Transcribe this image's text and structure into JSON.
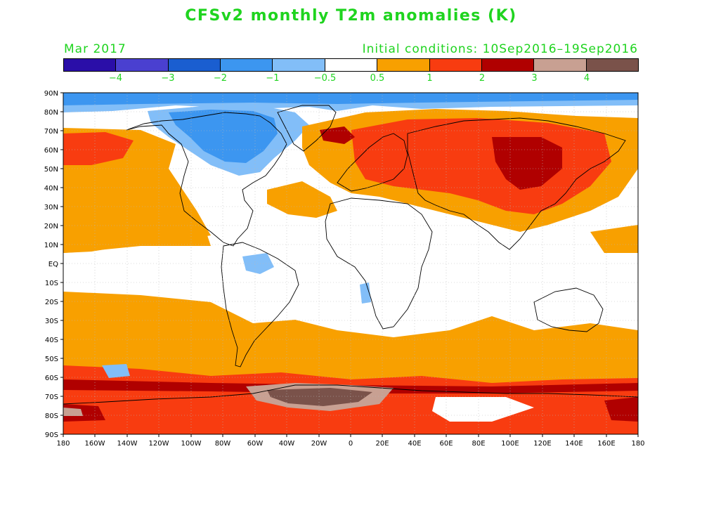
{
  "title": "CFSv2 monthly T2m anomalies (K)",
  "month_label": "Mar 2017",
  "initial_conditions": "Initial conditions: 10Sep2016–19Sep2016",
  "legend": {
    "colors": [
      "#2a0ea8",
      "#4a40d0",
      "#1a5ed0",
      "#3c96f0",
      "#82bef8",
      "#ffffff",
      "#f8a000",
      "#f83c10",
      "#b00000",
      "#c8a092",
      "#7a524a"
    ],
    "labels": [
      "−4",
      "−3",
      "−2",
      "−1",
      "−0.5",
      "0.5",
      "1",
      "2",
      "3",
      "4"
    ]
  },
  "lat_labels": [
    "90N",
    "80N",
    "70N",
    "60N",
    "50N",
    "40N",
    "30N",
    "20N",
    "10N",
    "EQ",
    "10S",
    "20S",
    "30S",
    "40S",
    "50S",
    "60S",
    "70S",
    "80S",
    "90S"
  ],
  "lon_labels": [
    "180",
    "160W",
    "140W",
    "120W",
    "100W",
    "80W",
    "60W",
    "40W",
    "20W",
    "0",
    "20E",
    "40E",
    "60E",
    "80E",
    "100E",
    "120E",
    "140E",
    "160E",
    "180"
  ]
}
